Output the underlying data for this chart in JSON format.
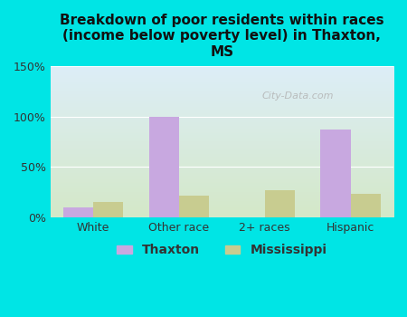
{
  "title": "Breakdown of poor residents within races\n(income below poverty level) in Thaxton,\nMS",
  "categories": [
    "White",
    "Other race",
    "2+ races",
    "Hispanic"
  ],
  "thaxton_values": [
    10,
    100,
    0,
    87
  ],
  "mississippi_values": [
    15,
    22,
    27,
    23
  ],
  "thaxton_color": "#c8a8e0",
  "mississippi_color": "#c8cc90",
  "background_outer": "#00e5e5",
  "background_inner_top": "#ddeef8",
  "background_inner_bottom": "#d4e8c8",
  "ylim": [
    0,
    150
  ],
  "yticks": [
    0,
    50,
    100,
    150
  ],
  "ytick_labels": [
    "0%",
    "50%",
    "100%",
    "150%"
  ],
  "bar_width": 0.35,
  "watermark": "City-Data.com"
}
